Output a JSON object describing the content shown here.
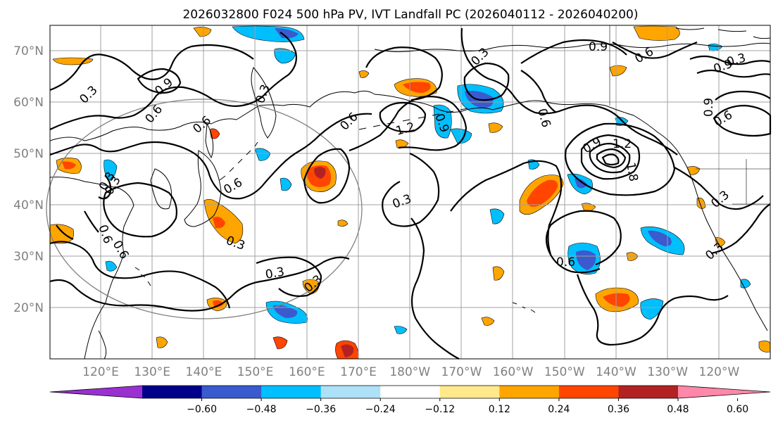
{
  "title": "2026032800 F024 500 hPa PV, IVT Landfall PC (2026040112 - 2026040200)",
  "lat_labels": [
    "70°N",
    "60°N",
    "50°N",
    "40°N",
    "30°N",
    "20°N"
  ],
  "lon_labels": [
    "120°E",
    "130°E",
    "140°E",
    "150°E",
    "160°E",
    "170°E",
    "180°W",
    "170°W",
    "160°W",
    "150°W",
    "140°W",
    "130°W",
    "120°W"
  ],
  "colorbar": {
    "ticks": [
      "−0.60",
      "−0.48",
      "−0.36",
      "−0.24",
      "−0.12",
      "0.12",
      "0.24",
      "0.36",
      "0.48",
      "0.60"
    ],
    "colors": [
      "#9b30d0",
      "#00008b",
      "#3a5acd",
      "#00bfff",
      "#ade1f8",
      "#ffffff",
      "#ffe98a",
      "#ffa500",
      "#ff4500",
      "#b22222",
      "#ff88aa"
    ]
  },
  "contour_labels": [
    "0.3",
    "0.9",
    "0.6",
    "0.3",
    "0.3",
    "0.6",
    "1.2",
    "0.6",
    "0.9",
    "0.6",
    "0.3",
    "0.9",
    "0.6",
    "0.9",
    "0.9",
    "1.2",
    "1.8",
    "0.3",
    "0.3",
    "0.6",
    "0.9",
    "0.3",
    "0.6",
    "0.6",
    "0.3",
    "0.3",
    "0.3",
    "0.3",
    "0.6",
    "0.3",
    "0.6"
  ]
}
